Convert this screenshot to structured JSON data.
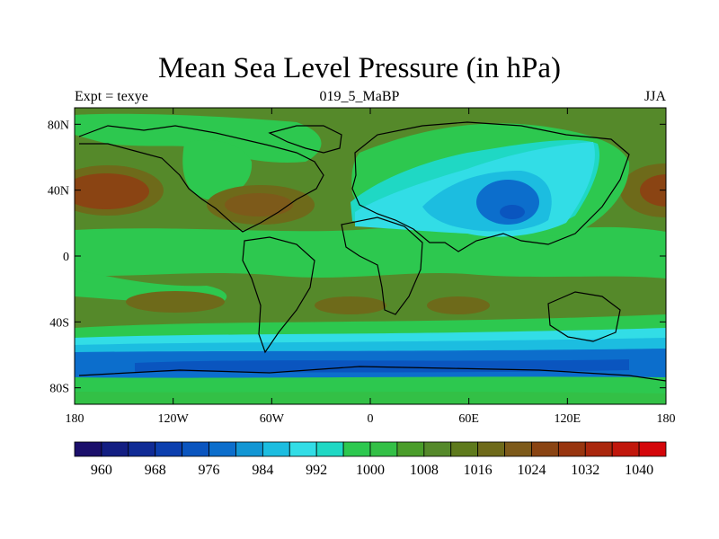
{
  "chart_data": {
    "type": "heatmap",
    "title": "Mean Sea Level Pressure (in hPa)",
    "left_string": "Expt = texye",
    "center_string": "019_5_MaBP",
    "right_string": "JJA",
    "x_ticks": [
      {
        "value": -180,
        "label": "180"
      },
      {
        "value": -120,
        "label": "120W"
      },
      {
        "value": -60,
        "label": "60W"
      },
      {
        "value": 0,
        "label": "0"
      },
      {
        "value": 60,
        "label": "60E"
      },
      {
        "value": 120,
        "label": "120E"
      },
      {
        "value": 180,
        "label": "180"
      }
    ],
    "y_ticks": [
      {
        "value": 80,
        "label": "80N"
      },
      {
        "value": 40,
        "label": "40N"
      },
      {
        "value": 0,
        "label": "0"
      },
      {
        "value": -40,
        "label": "40S"
      },
      {
        "value": -80,
        "label": "80S"
      }
    ],
    "xlim": [
      -180,
      180
    ],
    "ylim": [
      -90,
      90
    ],
    "colorbar": {
      "labels": [
        "960",
        "968",
        "976",
        "984",
        "992",
        "1000",
        "1008",
        "1016",
        "1024",
        "1032",
        "1040"
      ],
      "colors": [
        "#1b0f6b",
        "#131e82",
        "#102b95",
        "#0c3fae",
        "#0a55bf",
        "#0c6ecc",
        "#1296d4",
        "#1cbde0",
        "#32dde6",
        "#1fd8c4",
        "#2dc84f",
        "#33c046",
        "#4a9d2a",
        "#55892a",
        "#5e7a1c",
        "#6e6a1a",
        "#7d5a1a",
        "#8a4413",
        "#98350f",
        "#aa270d",
        "#c1170c",
        "#d4060a"
      ]
    },
    "fields": {
      "background": "#55892a",
      "regions": [
        {
          "level": "1008",
          "color": "#2dc84f",
          "lon_range": [
            -180,
            180
          ],
          "lat_range": [
            -5,
            20
          ],
          "desc": "tropical band"
        },
        {
          "level": "1024",
          "color": "#8a4413",
          "lon": -160,
          "lat": 40,
          "desc": "North Pacific high"
        },
        {
          "level": "1024",
          "color": "#8a4413",
          "lon": -55,
          "lat": 33,
          "desc": "Azores high"
        },
        {
          "level": "1000",
          "color": "#32dde6",
          "lon": 65,
          "lat": 38,
          "desc": "Asian low"
        },
        {
          "level": "984",
          "color": "#0c6ecc",
          "lon": 85,
          "lat": 33,
          "desc": "Asian low core"
        },
        {
          "level": "984",
          "color": "#0c6ecc",
          "lon_range": [
            -180,
            180
          ],
          "lat_range": [
            -70,
            -60
          ],
          "desc": "Southern Ocean trough"
        }
      ]
    }
  }
}
